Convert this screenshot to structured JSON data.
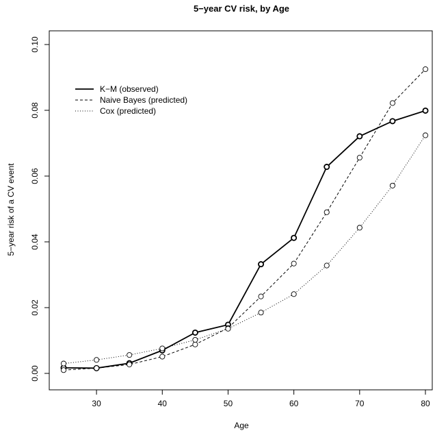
{
  "chart_data": {
    "type": "line",
    "title": "5−year CV risk, by Age",
    "xlabel": "Age",
    "ylabel": "5−year risk of a CV event",
    "xlim": [
      25,
      80
    ],
    "ylim": [
      0,
      0.1
    ],
    "x_ticks": [
      "30",
      "40",
      "50",
      "60",
      "70",
      "80"
    ],
    "y_ticks": [
      "0.00",
      "0.02",
      "0.04",
      "0.06",
      "0.08",
      "0.10"
    ],
    "x": [
      25,
      30,
      35,
      40,
      45,
      50,
      55,
      60,
      65,
      70,
      75,
      80
    ],
    "grid": false,
    "legend_position": "top-left",
    "series": [
      {
        "name": "K−M (observed)",
        "style": "solid",
        "bold_markers": true,
        "values": [
          0.0017,
          0.0016,
          0.0031,
          0.007,
          0.0124,
          0.0148,
          0.0332,
          0.0412,
          0.0628,
          0.0721,
          0.0767,
          0.0799
        ]
      },
      {
        "name": "Naive Bayes (predicted)",
        "style": "dashed",
        "bold_markers": false,
        "values": [
          0.001,
          0.0016,
          0.0027,
          0.0051,
          0.0088,
          0.0138,
          0.0234,
          0.0334,
          0.049,
          0.0656,
          0.0822,
          0.0925
        ]
      },
      {
        "name": "Cox (predicted)",
        "style": "dotted",
        "bold_markers": false,
        "values": [
          0.003,
          0.0041,
          0.0056,
          0.0076,
          0.0102,
          0.0136,
          0.0185,
          0.0241,
          0.0328,
          0.0443,
          0.0571,
          0.0724
        ]
      }
    ]
  }
}
